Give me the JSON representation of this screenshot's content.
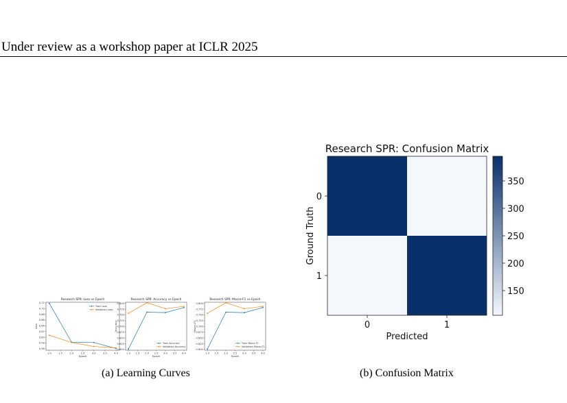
{
  "header": {
    "text": "Under review as a workshop paper at ICLR 2025"
  },
  "captions": {
    "a": "(a) Learning Curves",
    "b": "(b) Confusion Matrix"
  },
  "colors": {
    "train": "#1f77b4",
    "validation": "#ff7f0e",
    "cm_high": "#08306b",
    "cm_low": "#f4f8fd"
  },
  "chart_data": [
    {
      "type": "line",
      "title": "Research SPR: Loss vs Epoch",
      "xlabel": "Epoch",
      "ylabel": "Loss",
      "x": [
        1,
        2,
        3,
        4
      ],
      "xticks": [
        "1.0",
        "1.5",
        "2.0",
        "2.5",
        "3.0",
        "3.5",
        "4.0"
      ],
      "yticks": [
        "0.72",
        "0.70",
        "0.68",
        "0.66",
        "0.64",
        "0.62",
        "0.60",
        "0.58",
        "0.56"
      ],
      "ylim": [
        0.555,
        0.722
      ],
      "legend_position": "upper right",
      "series": [
        {
          "name": "Train Loss",
          "values": [
            0.718,
            0.583,
            0.582,
            0.561
          ]
        },
        {
          "name": "Validation Loss",
          "values": [
            0.607,
            0.582,
            0.568,
            0.563
          ]
        }
      ]
    },
    {
      "type": "line",
      "title": "Research SPR: Accuracy vs Epoch",
      "xlabel": "Epoch",
      "ylabel": "Accuracy",
      "x": [
        1,
        2,
        3,
        4
      ],
      "xticks": [
        "1.0",
        "1.5",
        "2.0",
        "2.5",
        "3.0",
        "3.5",
        "4.0"
      ],
      "yticks": [
        "0.800",
        "0.775",
        "0.750",
        "0.725",
        "0.700",
        "0.675",
        "0.650",
        "0.625",
        "0.600"
      ],
      "ylim": [
        0.597,
        0.805
      ],
      "legend_position": "lower right",
      "series": [
        {
          "name": "Train Accuracy",
          "values": [
            0.602,
            0.762,
            0.76,
            0.782
          ]
        },
        {
          "name": "Validation Accuracy",
          "values": [
            0.757,
            0.803,
            0.777,
            0.787
          ]
        }
      ]
    },
    {
      "type": "line",
      "title": "Research SPR: Macro-F1 vs Epoch",
      "xlabel": "Epoch",
      "ylabel": "Macro-F1",
      "x": [
        1,
        2,
        3,
        4
      ],
      "xticks": [
        "1.0",
        "1.5",
        "2.0",
        "2.5",
        "3.0",
        "3.5",
        "4.0"
      ],
      "yticks": [
        "0.800",
        "0.775",
        "0.750",
        "0.725",
        "0.700",
        "0.675",
        "0.650",
        "0.625",
        "0.600"
      ],
      "ylim": [
        0.597,
        0.805
      ],
      "legend_position": "lower right",
      "series": [
        {
          "name": "Train Macro-F1",
          "values": [
            0.602,
            0.762,
            0.76,
            0.782
          ]
        },
        {
          "name": "Validation Macro-F1",
          "values": [
            0.757,
            0.803,
            0.777,
            0.787
          ]
        }
      ]
    },
    {
      "type": "heatmap",
      "title": "Research SPR: Confusion Matrix",
      "xlabel": "Predicted",
      "ylabel": "Ground Truth",
      "xticks": [
        "0",
        "1"
      ],
      "yticks": [
        "0",
        "1"
      ],
      "values": [
        [
          395,
          105
        ],
        [
          105,
          395
        ]
      ],
      "colorbar_ticks": [
        150,
        200,
        250,
        300,
        350
      ],
      "colorbar_range": [
        105,
        395
      ]
    }
  ]
}
